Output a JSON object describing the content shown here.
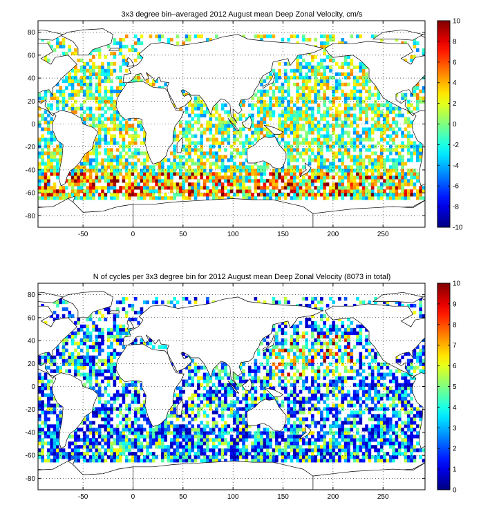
{
  "panels": [
    {
      "id": "velocity",
      "title": "3x3 degree bin–averaged 2012 August mean Deep Zonal Velocity, cm/s",
      "xticks": [
        "-50",
        "0",
        "50",
        "100",
        "150",
        "200",
        "250"
      ],
      "yticks": [
        "80",
        "60",
        "40",
        "20",
        "0",
        "-20",
        "-40",
        "-60",
        "-80"
      ],
      "colorbar": {
        "range": [
          -10,
          10
        ],
        "ticks": [
          "10",
          "8",
          "6",
          "4",
          "2",
          "0",
          "-2",
          "-4",
          "-6",
          "-8",
          "-10"
        ],
        "colormap": "jet"
      }
    },
    {
      "id": "cycles",
      "title": "N of cycles per 3x3 degree bin for 2012 August mean Deep Zonal Velocity (8073 in total)",
      "xticks": [
        "-50",
        "0",
        "50",
        "100",
        "150",
        "200",
        "250"
      ],
      "yticks": [
        "80",
        "60",
        "40",
        "20",
        "0",
        "-20",
        "-40",
        "-60",
        "-80"
      ],
      "colorbar": {
        "range": [
          0,
          10
        ],
        "ticks": [
          "10",
          "9",
          "8",
          "7",
          "6",
          "5",
          "4",
          "3",
          "2",
          "1",
          "0"
        ],
        "colormap": "jet"
      }
    }
  ],
  "chart_data": [
    {
      "type": "heatmap",
      "title": "3x3 degree bin–averaged 2012 August mean Deep Zonal Velocity, cm/s",
      "xlim": [
        -95,
        292
      ],
      "ylim": [
        -90,
        90
      ],
      "x_ticks": [
        -50,
        0,
        50,
        100,
        150,
        200,
        250
      ],
      "y_ticks": [
        -80,
        -60,
        -40,
        -20,
        0,
        20,
        40,
        60,
        80
      ],
      "bin_size_deg": 3,
      "color_range": [
        -10,
        10
      ],
      "colormap": "jet",
      "grid": "dotted"
    },
    {
      "type": "heatmap",
      "title": "N of cycles per 3x3 degree bin for 2012 August mean Deep Zonal Velocity (8073 in total)",
      "xlim": [
        -95,
        292
      ],
      "ylim": [
        -90,
        90
      ],
      "x_ticks": [
        -50,
        0,
        50,
        100,
        150,
        200,
        250
      ],
      "y_ticks": [
        -80,
        -60,
        -40,
        -20,
        0,
        20,
        40,
        60,
        80
      ],
      "bin_size_deg": 3,
      "color_range": [
        0,
        10
      ],
      "colormap": "jet",
      "grid": "dotted"
    }
  ]
}
